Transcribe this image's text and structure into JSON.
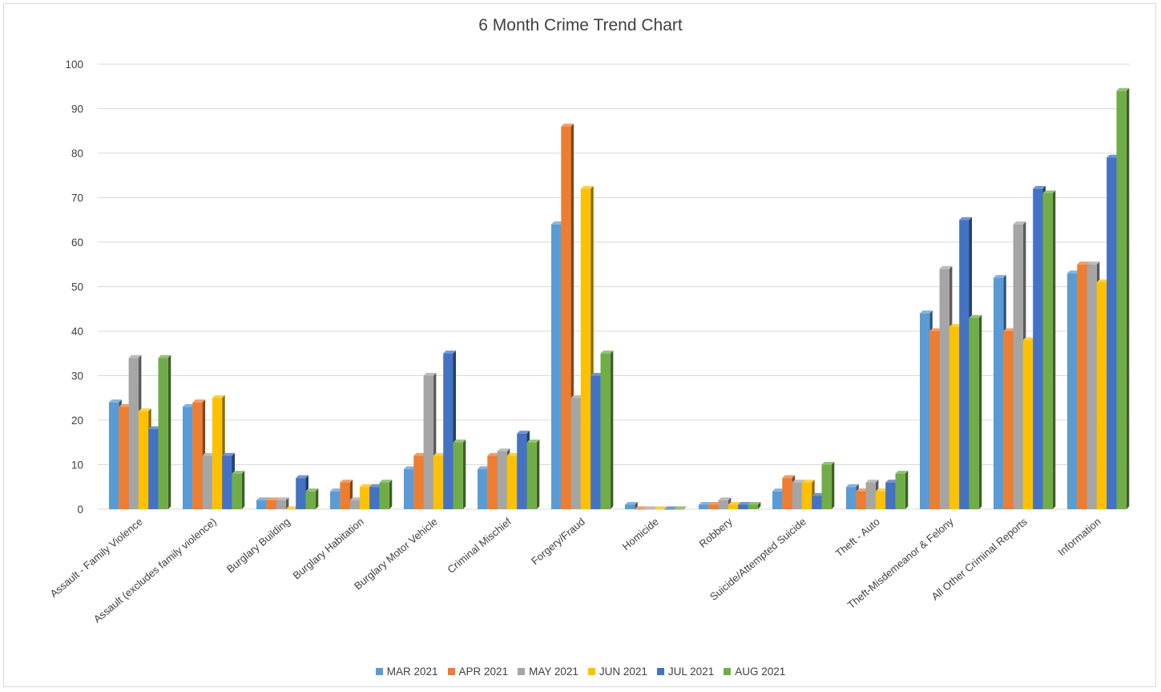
{
  "chart_data": {
    "type": "bar",
    "title": "6 Month Crime Trend Chart",
    "xlabel": "",
    "ylabel": "",
    "ylim": [
      0,
      100
    ],
    "yticks": [
      0,
      10,
      20,
      30,
      40,
      50,
      60,
      70,
      80,
      90,
      100
    ],
    "grid": true,
    "legend_position": "bottom",
    "style": "3d-clustered-column",
    "categories": [
      "Assault - Family Violence",
      "Assault (excludes family violence)",
      "Burglary Building",
      "Burglary Habitation",
      "Burglary Motor Vehicle",
      "Criminal Mischief",
      "Forgery/Fraud",
      "Homicide",
      "Robbery",
      "Suicide/Attempted Suicide",
      "Theft - Auto",
      "Theft-Misdemeanor &  Felony",
      "All Other Criminal Reports",
      "Information"
    ],
    "series": [
      {
        "name": "MAR 2021",
        "color": "#5b9bd5",
        "values": [
          24,
          23,
          2,
          4,
          9,
          9,
          64,
          1,
          1,
          4,
          5,
          44,
          52,
          53
        ]
      },
      {
        "name": "APR 2021",
        "color": "#ed7d31",
        "values": [
          23,
          24,
          2,
          6,
          12,
          12,
          86,
          0,
          1,
          7,
          4,
          40,
          40,
          55
        ]
      },
      {
        "name": "MAY 2021",
        "color": "#a5a5a5",
        "values": [
          34,
          12,
          2,
          2,
          30,
          13,
          25,
          0,
          2,
          6,
          6,
          54,
          64,
          55
        ]
      },
      {
        "name": "JUN 2021",
        "color": "#ffc000",
        "values": [
          22,
          25,
          0,
          5,
          12,
          12,
          72,
          0,
          1,
          6,
          4,
          41,
          38,
          51
        ]
      },
      {
        "name": "JUL 2021",
        "color": "#4472c4",
        "values": [
          18,
          12,
          7,
          5,
          35,
          17,
          30,
          0,
          1,
          3,
          6,
          65,
          72,
          79
        ]
      },
      {
        "name": "AUG 2021",
        "color": "#70ad47",
        "values": [
          34,
          8,
          4,
          6,
          15,
          15,
          35,
          0,
          1,
          10,
          8,
          43,
          71,
          94
        ]
      }
    ]
  }
}
